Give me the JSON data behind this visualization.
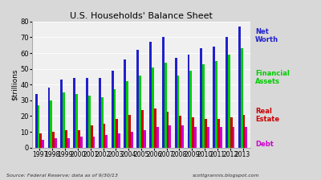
{
  "title": "U.S. Households' Balance Sheet",
  "ylabel": "$trillions",
  "xlabel_source": "Source: Federal Reserve; data as of 9/30/13",
  "xlabel_blog": "scottgrannis.blogspot.com",
  "years": [
    1997,
    1998,
    1999,
    2000,
    2001,
    2002,
    2003,
    2004,
    2005,
    2006,
    2007,
    2008,
    2009,
    2010,
    2011,
    2012,
    2013
  ],
  "net_worth": [
    34,
    38,
    43,
    44,
    44,
    44,
    49,
    56,
    62,
    67,
    70,
    57,
    59,
    63,
    64,
    70,
    77
  ],
  "financial_assets": [
    27,
    30,
    35,
    34,
    33,
    32,
    37,
    42,
    46,
    51,
    54,
    46,
    49,
    53,
    55,
    59,
    63
  ],
  "real_estate": [
    9,
    10,
    11,
    11,
    14,
    15,
    18,
    21,
    24,
    25,
    23,
    20,
    19,
    18,
    18,
    19,
    21
  ],
  "debt": [
    5,
    6,
    6,
    7,
    7,
    8,
    9,
    10,
    11,
    13,
    14,
    14,
    13,
    13,
    13,
    13,
    13
  ],
  "color_net_worth": "#2020cc",
  "color_financial": "#00cc00",
  "color_real_estate": "#cc0000",
  "color_debt": "#cc00cc",
  "background_color": "#d8d8d8",
  "plot_bg_color": "#f0f0f0",
  "ylim": [
    0,
    80
  ],
  "yticks": [
    0,
    10,
    20,
    30,
    40,
    50,
    60,
    70,
    80
  ],
  "legend_net_worth": "Net\nWorth",
  "legend_financial": "Financial\nAssets",
  "legend_real_estate": "Real\nEstate",
  "legend_debt": "Debt"
}
